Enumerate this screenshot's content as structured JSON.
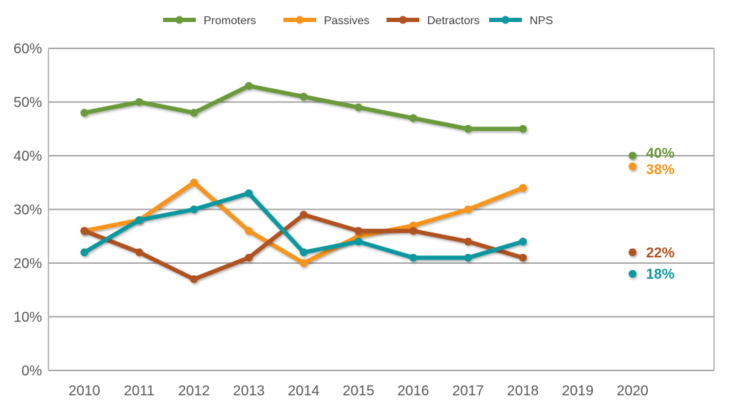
{
  "chart_data": {
    "type": "line",
    "title": "",
    "xlabel": "",
    "ylabel": "",
    "categories": [
      "2010",
      "2011",
      "2012",
      "2013",
      "2014",
      "2015",
      "2016",
      "2017",
      "2018",
      "2019",
      "2020"
    ],
    "ylim": [
      0,
      60
    ],
    "yticks": [
      "0%",
      "10%",
      "20%",
      "30%",
      "40%",
      "50%",
      "60%"
    ],
    "grid": true,
    "legend_position": "top",
    "series": [
      {
        "name": "Promoters",
        "color": "#6a9a3a",
        "values": [
          48,
          50,
          48,
          53,
          51,
          49,
          47,
          45,
          45,
          null,
          40
        ],
        "end_label": "40%"
      },
      {
        "name": "Passives",
        "color": "#f7941d",
        "values": [
          26,
          28,
          35,
          26,
          20,
          25,
          27,
          30,
          34,
          null,
          38
        ],
        "end_label": "38%"
      },
      {
        "name": "Detractors",
        "color": "#b05222",
        "values": [
          26,
          22,
          17,
          21,
          29,
          26,
          26,
          24,
          21,
          null,
          22
        ],
        "end_label": "22%"
      },
      {
        "name": "NPS",
        "color": "#10979f",
        "values": [
          22,
          28,
          30,
          33,
          22,
          24,
          21,
          21,
          24,
          null,
          18
        ],
        "end_label": "18%"
      }
    ]
  }
}
